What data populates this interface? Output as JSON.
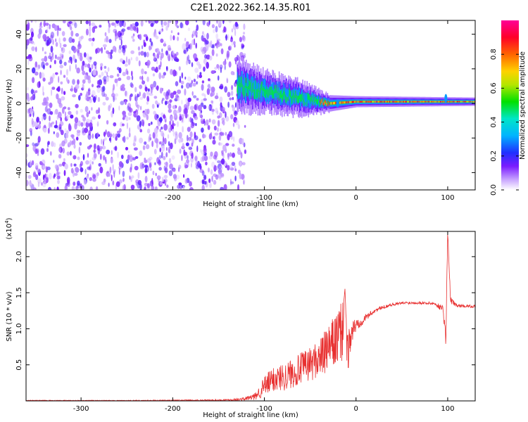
{
  "figure_title": "C2E1.2022.362.14.35.R01",
  "chart_data": [
    {
      "type": "heatmap",
      "title": "C2E1.2022.362.14.35.R01",
      "xlabel": "Height of straight line (km)",
      "ylabel": "Frequency (Hz)",
      "xlim": [
        -360,
        130
      ],
      "ylim": [
        -50,
        48
      ],
      "x_ticks": [
        -300,
        -200,
        -100,
        0,
        100
      ],
      "y_ticks": [
        -40,
        -20,
        0,
        20,
        40
      ],
      "x_tick_labels": [
        "-300",
        "-200",
        "-100",
        "0",
        "100"
      ],
      "y_tick_labels": [
        "-40",
        "-20",
        "0",
        "20",
        "40"
      ],
      "noise_region_end_km": -130,
      "signal_trace": [
        {
          "x": -130,
          "center": 10,
          "halfwidth": 9
        },
        {
          "x": -100,
          "center": 7,
          "halfwidth": 7
        },
        {
          "x": -60,
          "center": 3,
          "halfwidth": 6
        },
        {
          "x": -30,
          "center": 0,
          "halfwidth": 3
        },
        {
          "x": 0,
          "center": 1,
          "halfwidth": 2
        },
        {
          "x": 130,
          "center": 1,
          "halfwidth": 1.5
        }
      ],
      "colorbar": {
        "label": "Normalized spectral amplitude",
        "range": [
          0,
          1
        ],
        "ticks": [
          0.0,
          0.2,
          0.4,
          0.6,
          0.8
        ],
        "tick_labels": [
          "0.0",
          "0.2",
          "0.4",
          "0.6",
          "0.8"
        ]
      }
    },
    {
      "type": "line",
      "xlabel": "Height of straight line (km)",
      "ylabel": "SNR (10 * v/v)",
      "y_multiplier": "(x10",
      "y_multiplier_exp": "4",
      "xlim": [
        -360,
        130
      ],
      "ylim": [
        0,
        2.35
      ],
      "x_ticks": [
        -300,
        -200,
        -100,
        0,
        100
      ],
      "y_ticks": [
        0.5,
        1.0,
        1.5,
        2.0
      ],
      "x_tick_labels": [
        "-300",
        "-200",
        "-100",
        "0",
        "100"
      ],
      "y_tick_labels": [
        "0.5",
        "1.0",
        "1.5",
        "2.0"
      ],
      "series": [
        {
          "name": "SNR",
          "color": "#e83030",
          "x": [
            -360,
            -250,
            -150,
            -125,
            -110,
            -100,
            -90,
            -75,
            -60,
            -45,
            -35,
            -25,
            -15,
            -12,
            -10,
            -5,
            0,
            10,
            20,
            30,
            40,
            55,
            70,
            85,
            95,
            98,
            100,
            103,
            110,
            130
          ],
          "y": [
            0.005,
            0.005,
            0.01,
            0.02,
            0.06,
            0.2,
            0.3,
            0.35,
            0.45,
            0.55,
            0.65,
            0.8,
            0.95,
            1.6,
            0.6,
            0.95,
            1.05,
            1.15,
            1.25,
            1.3,
            1.34,
            1.36,
            1.36,
            1.35,
            1.28,
            0.85,
            2.35,
            1.4,
            1.32,
            1.31
          ],
          "noise": [
            0.005,
            0.005,
            0.01,
            0.02,
            0.05,
            0.15,
            0.18,
            0.2,
            0.22,
            0.25,
            0.3,
            0.35,
            0.45,
            0.1,
            0.3,
            0.2,
            0.1,
            0.05,
            0.03,
            0.025,
            0.02,
            0.02,
            0.02,
            0.02,
            0.05,
            0.1,
            0.1,
            0.05,
            0.02,
            0.02
          ]
        }
      ]
    }
  ]
}
